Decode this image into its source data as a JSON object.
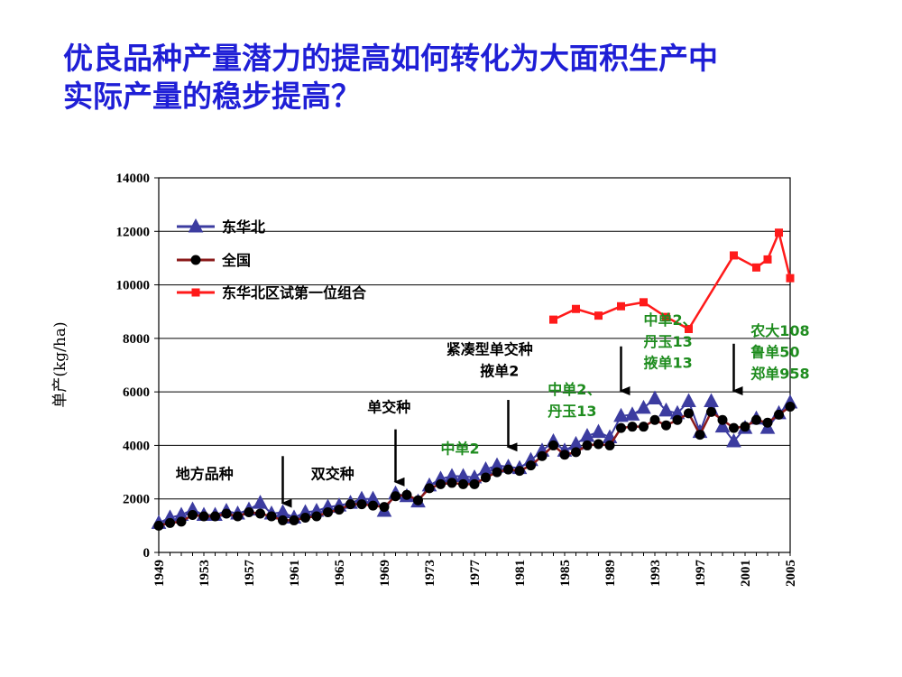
{
  "title": {
    "line1": "优良品种产量潜力的提高如何转化为大面积生产中",
    "line2": "实际产量的稳步提高？"
  },
  "chart_data": {
    "type": "line",
    "ylabel": "单产(kg/ha)",
    "ylim": [
      0,
      14000
    ],
    "yticks": [
      0,
      2000,
      4000,
      6000,
      8000,
      10000,
      12000,
      14000
    ],
    "xlim": [
      1949,
      2005
    ],
    "xticks": [
      1949,
      1953,
      1957,
      1961,
      1965,
      1969,
      1973,
      1977,
      1981,
      1985,
      1989,
      1993,
      1997,
      2001,
      2005
    ],
    "legend_position": "top-left",
    "colors": {
      "northeast": "#3c3ca0",
      "national": "#000000",
      "national_line": "#8b1a1a",
      "trial": "#ff1a1a",
      "green_text": "#1e8c1e"
    },
    "series": [
      {
        "name": "东华北",
        "marker": "triangle",
        "x": [
          1949,
          1950,
          1951,
          1952,
          1953,
          1954,
          1955,
          1956,
          1957,
          1958,
          1959,
          1960,
          1961,
          1962,
          1963,
          1964,
          1965,
          1966,
          1967,
          1968,
          1969,
          1970,
          1971,
          1972,
          1973,
          1974,
          1975,
          1976,
          1977,
          1978,
          1979,
          1980,
          1981,
          1982,
          1983,
          1984,
          1985,
          1986,
          1987,
          1988,
          1989,
          1990,
          1991,
          1992,
          1993,
          1994,
          1995,
          1996,
          1997,
          1998,
          1999,
          2000,
          2001,
          2002,
          2003,
          2004,
          2005
        ],
        "values": [
          1100,
          1300,
          1400,
          1600,
          1400,
          1400,
          1550,
          1450,
          1600,
          1850,
          1450,
          1500,
          1300,
          1500,
          1550,
          1700,
          1750,
          1850,
          2000,
          2000,
          1550,
          2200,
          2100,
          1900,
          2500,
          2750,
          2850,
          2850,
          2800,
          3100,
          3250,
          3200,
          3150,
          3450,
          3800,
          4150,
          3800,
          4050,
          4350,
          4500,
          4300,
          5100,
          5150,
          5400,
          5750,
          5300,
          5200,
          5650,
          4500,
          5650,
          4700,
          4150,
          4650,
          5000,
          4650,
          5200,
          5600
        ]
      },
      {
        "name": "全国",
        "marker": "circle",
        "x": [
          1949,
          1950,
          1951,
          1952,
          1953,
          1954,
          1955,
          1956,
          1957,
          1958,
          1959,
          1960,
          1961,
          1962,
          1963,
          1964,
          1965,
          1966,
          1967,
          1968,
          1969,
          1970,
          1971,
          1972,
          1973,
          1974,
          1975,
          1976,
          1977,
          1978,
          1979,
          1980,
          1981,
          1982,
          1983,
          1984,
          1985,
          1986,
          1987,
          1988,
          1989,
          1990,
          1991,
          1992,
          1993,
          1994,
          1995,
          1996,
          1997,
          1998,
          1999,
          2000,
          2001,
          2002,
          2003,
          2004,
          2005
        ],
        "values": [
          1000,
          1100,
          1150,
          1400,
          1350,
          1350,
          1450,
          1350,
          1500,
          1450,
          1350,
          1200,
          1200,
          1300,
          1350,
          1500,
          1600,
          1800,
          1800,
          1750,
          1700,
          2100,
          2150,
          1950,
          2400,
          2550,
          2600,
          2550,
          2550,
          2800,
          3000,
          3100,
          3050,
          3250,
          3600,
          4000,
          3650,
          3750,
          4000,
          4050,
          4000,
          4650,
          4700,
          4700,
          4950,
          4750,
          4950,
          5200,
          4400,
          5250,
          4950,
          4650,
          4700,
          4950,
          4850,
          5150,
          5450
        ]
      },
      {
        "name": "东华北区试第一位组合",
        "marker": "square",
        "x": [
          1984,
          1986,
          1988,
          1990,
          1992,
          1994,
          1996,
          2000,
          2002,
          2003,
          2004,
          2005
        ],
        "values": [
          8700,
          9100,
          8850,
          9200,
          9350,
          8800,
          8350,
          11100,
          10650,
          10950,
          11950,
          10250
        ]
      }
    ],
    "annotations": [
      {
        "text": "地方品种",
        "color": "black",
        "year": 1950.5,
        "value": 2750
      },
      {
        "text": "双交种",
        "color": "black",
        "year": 1962.5,
        "value": 2750
      },
      {
        "text": "单交种",
        "color": "black",
        "year": 1967.5,
        "value": 5250
      },
      {
        "text": "紧凑型单交种",
        "color": "black",
        "year": 1974.5,
        "value": 7400
      },
      {
        "text": "掖单2",
        "color": "black",
        "year": 1977.5,
        "value": 6600
      },
      {
        "text": "中单2",
        "color": "green",
        "year": 1974,
        "value": 3700
      },
      {
        "text": "中单2、",
        "color": "green",
        "year": 1983.5,
        "value": 5900
      },
      {
        "text": "丹玉13",
        "color": "green",
        "year": 1983.5,
        "value": 5100
      },
      {
        "text": "中单2、",
        "color": "green",
        "year": 1992,
        "value": 8500
      },
      {
        "text": "丹玉13",
        "color": "green",
        "year": 1992,
        "value": 7700
      },
      {
        "text": "掖单13",
        "color": "green",
        "year": 1992,
        "value": 6900
      },
      {
        "text": "农大108",
        "color": "green",
        "year": 2001.5,
        "value": 8100
      },
      {
        "text": "鲁单50",
        "color": "green",
        "year": 2001.5,
        "value": 7300
      },
      {
        "text": "郑单958",
        "color": "green",
        "year": 2001.5,
        "value": 6500
      }
    ],
    "arrows": [
      {
        "year": 1960,
        "from": 3600,
        "to": 1500
      },
      {
        "year": 1970,
        "from": 4600,
        "to": 2300
      },
      {
        "year": 1980,
        "from": 5700,
        "to": 3600
      },
      {
        "year": 1990,
        "from": 7700,
        "to": 5700
      },
      {
        "year": 2000,
        "from": 7800,
        "to": 5700
      }
    ]
  }
}
